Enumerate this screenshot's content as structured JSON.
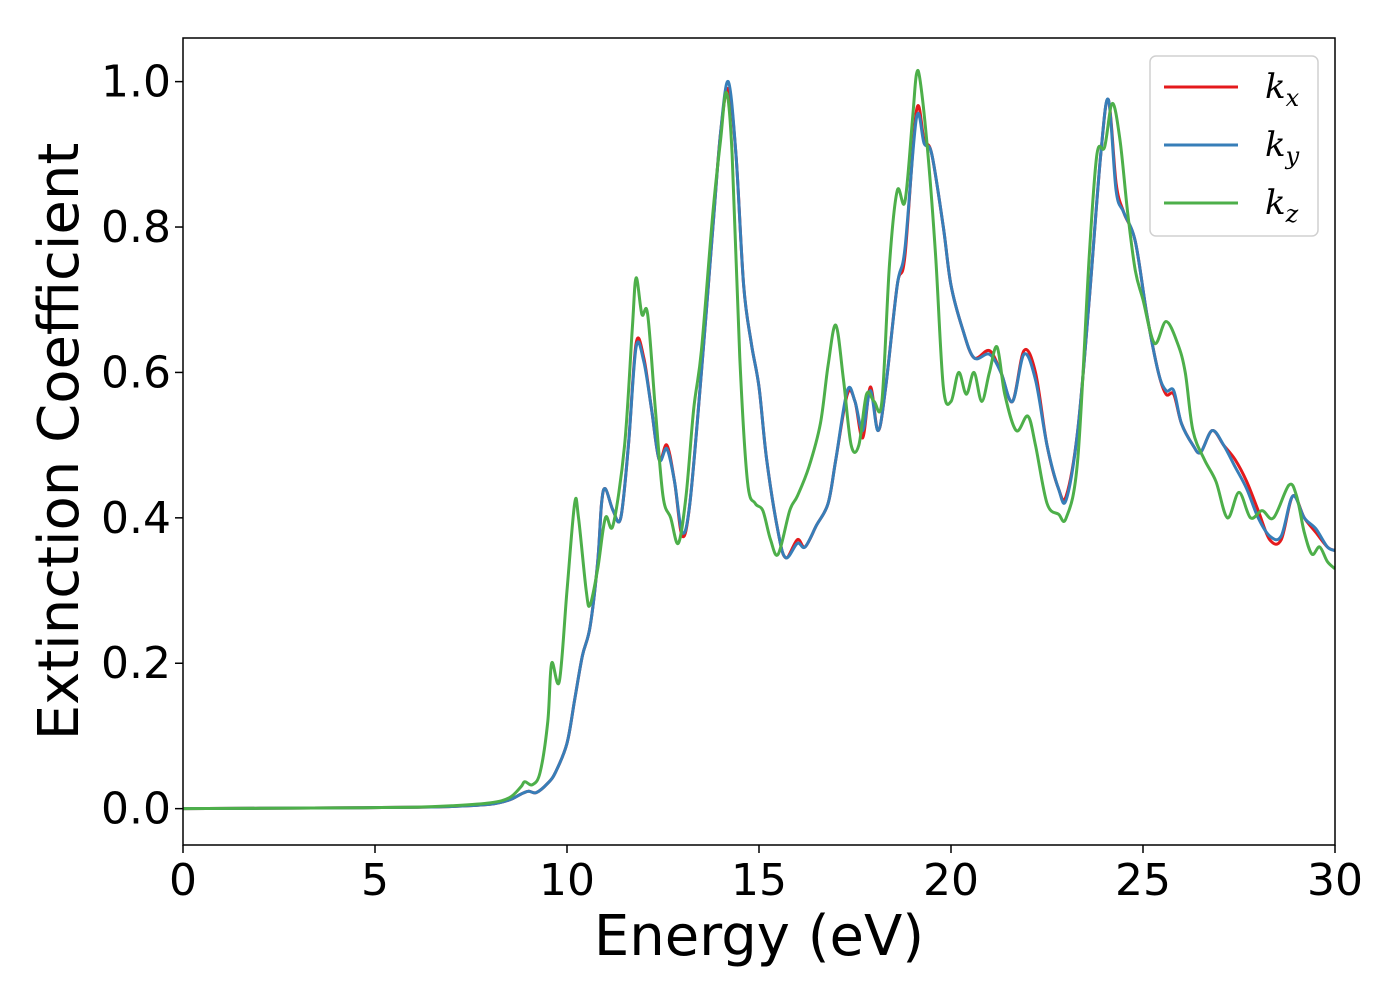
{
  "chart_data": {
    "type": "line",
    "xlabel": "Energy (eV)",
    "ylabel": "Extinction Coefficient",
    "xlim": [
      0,
      30
    ],
    "ylim": [
      -0.05,
      1.06
    ],
    "xticks": [
      0,
      5,
      10,
      15,
      20,
      25,
      30
    ],
    "yticks": [
      0.0,
      0.2,
      0.4,
      0.6,
      0.8,
      1.0
    ],
    "xtick_labels": [
      "0",
      "5",
      "10",
      "15",
      "20",
      "25",
      "30"
    ],
    "ytick_labels": [
      "0.0",
      "0.2",
      "0.4",
      "0.6",
      "0.8",
      "1.0"
    ],
    "grid": false,
    "legend_position": "top-right",
    "series": [
      {
        "name": "k_x",
        "label_main": "k",
        "label_sub": "x",
        "color": "#e41a1c",
        "points": [
          [
            0,
            0.0
          ],
          [
            2,
            0.0005
          ],
          [
            4,
            0.001
          ],
          [
            6,
            0.002
          ],
          [
            7,
            0.003
          ],
          [
            8,
            0.006
          ],
          [
            8.5,
            0.012
          ],
          [
            8.8,
            0.02
          ],
          [
            9.0,
            0.024
          ],
          [
            9.2,
            0.022
          ],
          [
            9.5,
            0.035
          ],
          [
            9.7,
            0.05
          ],
          [
            10.0,
            0.09
          ],
          [
            10.2,
            0.15
          ],
          [
            10.4,
            0.21
          ],
          [
            10.6,
            0.25
          ],
          [
            10.8,
            0.34
          ],
          [
            10.9,
            0.42
          ],
          [
            11.0,
            0.44
          ],
          [
            11.2,
            0.41
          ],
          [
            11.4,
            0.4
          ],
          [
            11.6,
            0.5
          ],
          [
            11.8,
            0.64
          ],
          [
            12.0,
            0.62
          ],
          [
            12.2,
            0.55
          ],
          [
            12.4,
            0.48
          ],
          [
            12.6,
            0.5
          ],
          [
            12.8,
            0.45
          ],
          [
            13.0,
            0.375
          ],
          [
            13.2,
            0.42
          ],
          [
            13.5,
            0.6
          ],
          [
            13.8,
            0.8
          ],
          [
            14.0,
            0.93
          ],
          [
            14.2,
            0.99
          ],
          [
            14.4,
            0.9
          ],
          [
            14.6,
            0.72
          ],
          [
            14.8,
            0.64
          ],
          [
            15.0,
            0.58
          ],
          [
            15.2,
            0.48
          ],
          [
            15.5,
            0.38
          ],
          [
            15.7,
            0.345
          ],
          [
            16.0,
            0.37
          ],
          [
            16.2,
            0.36
          ],
          [
            16.5,
            0.39
          ],
          [
            16.8,
            0.42
          ],
          [
            17.0,
            0.48
          ],
          [
            17.3,
            0.57
          ],
          [
            17.5,
            0.56
          ],
          [
            17.7,
            0.51
          ],
          [
            17.9,
            0.58
          ],
          [
            18.1,
            0.52
          ],
          [
            18.3,
            0.58
          ],
          [
            18.6,
            0.72
          ],
          [
            18.8,
            0.76
          ],
          [
            19.1,
            0.96
          ],
          [
            19.3,
            0.92
          ],
          [
            19.5,
            0.9
          ],
          [
            19.8,
            0.8
          ],
          [
            20.0,
            0.72
          ],
          [
            20.3,
            0.66
          ],
          [
            20.6,
            0.62
          ],
          [
            21.0,
            0.63
          ],
          [
            21.3,
            0.6
          ],
          [
            21.6,
            0.56
          ],
          [
            21.9,
            0.63
          ],
          [
            22.2,
            0.6
          ],
          [
            22.5,
            0.5
          ],
          [
            22.8,
            0.44
          ],
          [
            23.0,
            0.43
          ],
          [
            23.3,
            0.52
          ],
          [
            23.6,
            0.7
          ],
          [
            23.9,
            0.9
          ],
          [
            24.1,
            0.975
          ],
          [
            24.3,
            0.86
          ],
          [
            24.5,
            0.82
          ],
          [
            24.8,
            0.78
          ],
          [
            25.1,
            0.68
          ],
          [
            25.4,
            0.6
          ],
          [
            25.6,
            0.57
          ],
          [
            25.8,
            0.57
          ],
          [
            26.0,
            0.53
          ],
          [
            26.3,
            0.5
          ],
          [
            26.5,
            0.49
          ],
          [
            26.8,
            0.52
          ],
          [
            27.1,
            0.5
          ],
          [
            27.4,
            0.48
          ],
          [
            27.7,
            0.45
          ],
          [
            28.0,
            0.41
          ],
          [
            28.3,
            0.37
          ],
          [
            28.6,
            0.37
          ],
          [
            28.9,
            0.43
          ],
          [
            29.2,
            0.4
          ],
          [
            29.5,
            0.38
          ],
          [
            29.8,
            0.36
          ],
          [
            30,
            0.355
          ]
        ]
      },
      {
        "name": "k_y",
        "label_main": "k",
        "label_sub": "y",
        "color": "#377eb8",
        "points": [
          [
            0,
            0.0
          ],
          [
            2,
            0.0005
          ],
          [
            4,
            0.001
          ],
          [
            6,
            0.002
          ],
          [
            7,
            0.003
          ],
          [
            8,
            0.006
          ],
          [
            8.5,
            0.012
          ],
          [
            8.8,
            0.02
          ],
          [
            9.0,
            0.024
          ],
          [
            9.2,
            0.022
          ],
          [
            9.5,
            0.035
          ],
          [
            9.7,
            0.05
          ],
          [
            10.0,
            0.09
          ],
          [
            10.2,
            0.15
          ],
          [
            10.4,
            0.21
          ],
          [
            10.6,
            0.25
          ],
          [
            10.8,
            0.34
          ],
          [
            10.9,
            0.42
          ],
          [
            11.0,
            0.44
          ],
          [
            11.2,
            0.41
          ],
          [
            11.4,
            0.4
          ],
          [
            11.6,
            0.5
          ],
          [
            11.8,
            0.635
          ],
          [
            12.0,
            0.615
          ],
          [
            12.2,
            0.55
          ],
          [
            12.4,
            0.48
          ],
          [
            12.6,
            0.495
          ],
          [
            12.8,
            0.45
          ],
          [
            13.0,
            0.38
          ],
          [
            13.2,
            0.42
          ],
          [
            13.5,
            0.6
          ],
          [
            13.8,
            0.8
          ],
          [
            14.0,
            0.93
          ],
          [
            14.2,
            1.0
          ],
          [
            14.4,
            0.9
          ],
          [
            14.6,
            0.72
          ],
          [
            14.8,
            0.64
          ],
          [
            15.0,
            0.58
          ],
          [
            15.2,
            0.48
          ],
          [
            15.5,
            0.38
          ],
          [
            15.7,
            0.345
          ],
          [
            16.0,
            0.365
          ],
          [
            16.2,
            0.36
          ],
          [
            16.5,
            0.39
          ],
          [
            16.8,
            0.42
          ],
          [
            17.0,
            0.48
          ],
          [
            17.3,
            0.575
          ],
          [
            17.5,
            0.56
          ],
          [
            17.7,
            0.52
          ],
          [
            17.9,
            0.575
          ],
          [
            18.1,
            0.52
          ],
          [
            18.3,
            0.58
          ],
          [
            18.6,
            0.72
          ],
          [
            18.8,
            0.77
          ],
          [
            19.1,
            0.95
          ],
          [
            19.3,
            0.915
          ],
          [
            19.5,
            0.9
          ],
          [
            19.8,
            0.8
          ],
          [
            20.0,
            0.72
          ],
          [
            20.3,
            0.66
          ],
          [
            20.6,
            0.62
          ],
          [
            21.0,
            0.625
          ],
          [
            21.3,
            0.6
          ],
          [
            21.6,
            0.56
          ],
          [
            21.9,
            0.625
          ],
          [
            22.2,
            0.59
          ],
          [
            22.5,
            0.5
          ],
          [
            22.8,
            0.44
          ],
          [
            23.0,
            0.425
          ],
          [
            23.3,
            0.52
          ],
          [
            23.6,
            0.7
          ],
          [
            23.9,
            0.9
          ],
          [
            24.1,
            0.975
          ],
          [
            24.3,
            0.85
          ],
          [
            24.5,
            0.82
          ],
          [
            24.8,
            0.78
          ],
          [
            25.1,
            0.68
          ],
          [
            25.4,
            0.6
          ],
          [
            25.6,
            0.575
          ],
          [
            25.8,
            0.575
          ],
          [
            26.0,
            0.53
          ],
          [
            26.3,
            0.5
          ],
          [
            26.5,
            0.49
          ],
          [
            26.8,
            0.52
          ],
          [
            27.1,
            0.5
          ],
          [
            27.4,
            0.47
          ],
          [
            27.7,
            0.44
          ],
          [
            28.0,
            0.4
          ],
          [
            28.3,
            0.375
          ],
          [
            28.6,
            0.375
          ],
          [
            28.9,
            0.43
          ],
          [
            29.2,
            0.4
          ],
          [
            29.5,
            0.385
          ],
          [
            29.8,
            0.36
          ],
          [
            30,
            0.355
          ]
        ]
      },
      {
        "name": "k_z",
        "label_main": "k",
        "label_sub": "z",
        "color": "#4daf4a",
        "points": [
          [
            0,
            0.0
          ],
          [
            2,
            0.0005
          ],
          [
            4,
            0.001
          ],
          [
            6,
            0.002
          ],
          [
            7,
            0.004
          ],
          [
            8,
            0.008
          ],
          [
            8.5,
            0.015
          ],
          [
            8.8,
            0.03
          ],
          [
            8.9,
            0.037
          ],
          [
            9.1,
            0.033
          ],
          [
            9.3,
            0.05
          ],
          [
            9.5,
            0.12
          ],
          [
            9.6,
            0.2
          ],
          [
            9.8,
            0.175
          ],
          [
            10.0,
            0.3
          ],
          [
            10.2,
            0.42
          ],
          [
            10.3,
            0.4
          ],
          [
            10.5,
            0.3
          ],
          [
            10.6,
            0.28
          ],
          [
            10.8,
            0.33
          ],
          [
            11.0,
            0.4
          ],
          [
            11.2,
            0.39
          ],
          [
            11.5,
            0.5
          ],
          [
            11.7,
            0.66
          ],
          [
            11.8,
            0.73
          ],
          [
            11.95,
            0.68
          ],
          [
            12.1,
            0.68
          ],
          [
            12.3,
            0.55
          ],
          [
            12.5,
            0.43
          ],
          [
            12.7,
            0.4
          ],
          [
            12.9,
            0.365
          ],
          [
            13.1,
            0.43
          ],
          [
            13.3,
            0.55
          ],
          [
            13.5,
            0.63
          ],
          [
            13.8,
            0.82
          ],
          [
            14.0,
            0.92
          ],
          [
            14.15,
            0.985
          ],
          [
            14.3,
            0.9
          ],
          [
            14.5,
            0.62
          ],
          [
            14.7,
            0.45
          ],
          [
            14.9,
            0.42
          ],
          [
            15.1,
            0.41
          ],
          [
            15.3,
            0.37
          ],
          [
            15.5,
            0.35
          ],
          [
            15.8,
            0.41
          ],
          [
            16.0,
            0.43
          ],
          [
            16.3,
            0.47
          ],
          [
            16.6,
            0.53
          ],
          [
            16.8,
            0.61
          ],
          [
            17.0,
            0.665
          ],
          [
            17.2,
            0.59
          ],
          [
            17.4,
            0.5
          ],
          [
            17.6,
            0.5
          ],
          [
            17.8,
            0.57
          ],
          [
            18.0,
            0.56
          ],
          [
            18.2,
            0.56
          ],
          [
            18.4,
            0.75
          ],
          [
            18.6,
            0.85
          ],
          [
            18.8,
            0.835
          ],
          [
            19.0,
            0.95
          ],
          [
            19.1,
            1.01
          ],
          [
            19.2,
            1.0
          ],
          [
            19.4,
            0.9
          ],
          [
            19.6,
            0.76
          ],
          [
            19.8,
            0.58
          ],
          [
            20.0,
            0.56
          ],
          [
            20.2,
            0.6
          ],
          [
            20.4,
            0.57
          ],
          [
            20.6,
            0.6
          ],
          [
            20.8,
            0.56
          ],
          [
            21.0,
            0.6
          ],
          [
            21.2,
            0.635
          ],
          [
            21.4,
            0.57
          ],
          [
            21.7,
            0.52
          ],
          [
            22.0,
            0.54
          ],
          [
            22.2,
            0.5
          ],
          [
            22.5,
            0.42
          ],
          [
            22.8,
            0.405
          ],
          [
            23.0,
            0.4
          ],
          [
            23.3,
            0.48
          ],
          [
            23.6,
            0.76
          ],
          [
            23.8,
            0.9
          ],
          [
            24.0,
            0.91
          ],
          [
            24.2,
            0.97
          ],
          [
            24.4,
            0.92
          ],
          [
            24.6,
            0.82
          ],
          [
            24.8,
            0.74
          ],
          [
            25.0,
            0.7
          ],
          [
            25.3,
            0.64
          ],
          [
            25.6,
            0.67
          ],
          [
            25.9,
            0.64
          ],
          [
            26.1,
            0.6
          ],
          [
            26.3,
            0.52
          ],
          [
            26.6,
            0.48
          ],
          [
            26.9,
            0.45
          ],
          [
            27.2,
            0.4
          ],
          [
            27.5,
            0.435
          ],
          [
            27.8,
            0.4
          ],
          [
            28.1,
            0.41
          ],
          [
            28.4,
            0.4
          ],
          [
            28.8,
            0.445
          ],
          [
            29.0,
            0.43
          ],
          [
            29.2,
            0.38
          ],
          [
            29.4,
            0.35
          ],
          [
            29.6,
            0.36
          ],
          [
            29.8,
            0.34
          ],
          [
            30,
            0.33
          ]
        ]
      }
    ]
  }
}
